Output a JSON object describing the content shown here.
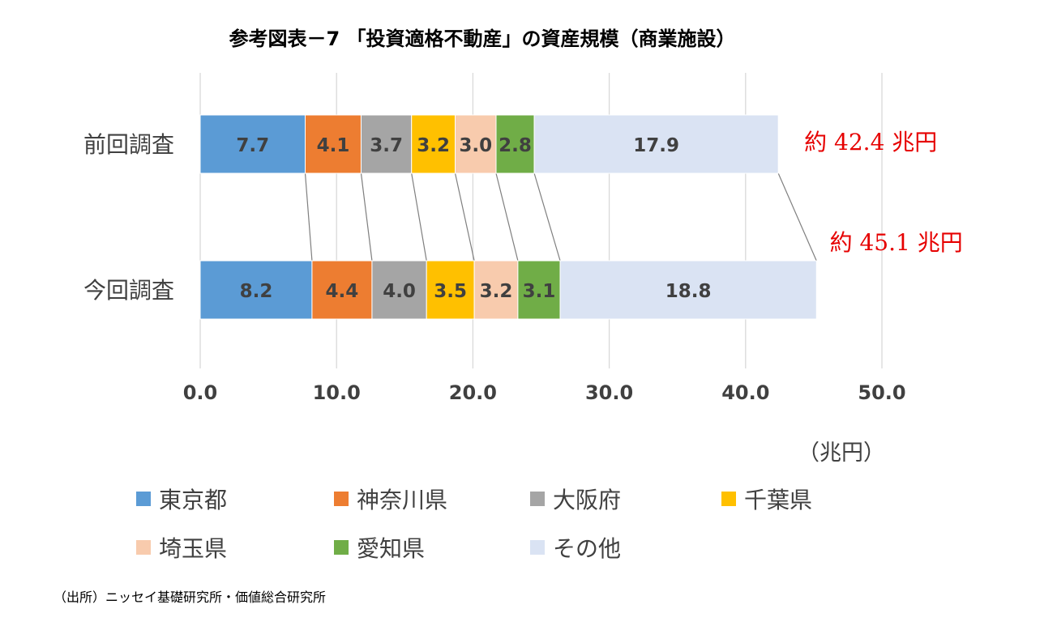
{
  "chart_data": {
    "type": "bar",
    "orientation": "horizontal",
    "stacked": true,
    "title": "参考図表－7 「投資適格不動産」の資産規模（商業施設）",
    "unit": "（兆円）",
    "categories": [
      "前回調査",
      "今回調査"
    ],
    "series": [
      {
        "name": "東京都",
        "color": "#5B9BD5",
        "values": [
          7.7,
          8.2
        ]
      },
      {
        "name": "神奈川県",
        "color": "#ED7D31",
        "values": [
          4.1,
          4.4
        ]
      },
      {
        "name": "大阪府",
        "color": "#A5A5A5",
        "values": [
          3.7,
          4.0
        ]
      },
      {
        "name": "千葉県",
        "color": "#FFC000",
        "values": [
          3.2,
          3.5
        ]
      },
      {
        "name": "埼玉県",
        "color": "#F8CBAD",
        "values": [
          3.0,
          3.2
        ]
      },
      {
        "name": "愛知県",
        "color": "#70AD47",
        "values": [
          2.8,
          3.1
        ]
      },
      {
        "name": "その他",
        "color": "#DAE3F3",
        "values": [
          17.9,
          18.8
        ]
      }
    ],
    "totals": [
      42.4,
      45.1
    ],
    "total_labels": [
      "約 42.4 兆円",
      "約 45.1 兆円"
    ],
    "xlim": [
      0,
      50
    ],
    "x_ticks": [
      "0.0",
      "10.0",
      "20.0",
      "30.0",
      "40.0",
      "50.0"
    ],
    "grid": true,
    "legend_position": "bottom",
    "total_label_color": "#E60000"
  },
  "source_note": "（出所）ニッセイ基礎研究所・価値総合研究所"
}
